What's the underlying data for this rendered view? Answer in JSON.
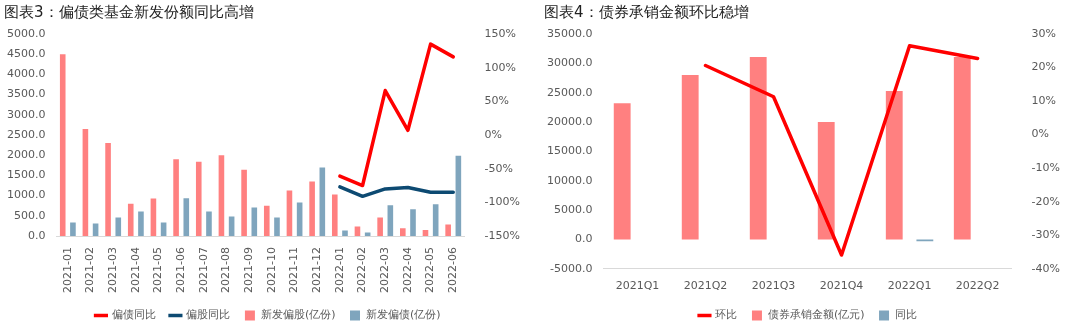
{
  "chart_data": [
    {
      "type": "bar",
      "title": "图表3：偏债类基金新发份额同比高增",
      "categories": [
        "2021-01",
        "2021-02",
        "2021-03",
        "2021-04",
        "2021-05",
        "2021-06",
        "2021-07",
        "2021-08",
        "2021-09",
        "2021-10",
        "2021-11",
        "2021-12",
        "2022-01",
        "2022-02",
        "2022-03",
        "2022-04",
        "2022-05",
        "2022-06"
      ],
      "series": [
        {
          "name": "新发偏股(亿份)",
          "color": "#ff8080",
          "values": [
            4500,
            2650,
            2300,
            800,
            930,
            1900,
            1840,
            2000,
            1640,
            750,
            1130,
            1350,
            1030,
            234,
            458,
            190,
            147,
            285
          ]
        },
        {
          "name": "新发偏债(亿份)",
          "color": "#7fa5bd",
          "values": [
            337,
            311,
            458,
            605,
            337,
            934,
            605,
            484,
            709,
            458,
            830,
            1696,
            138,
            87,
            761,
            666,
            787,
            1990
          ]
        },
        {
          "name": "偏债同比",
          "type": "line",
          "axis": "y2",
          "color": "#ff0000",
          "values": [
            null,
            null,
            null,
            null,
            null,
            null,
            null,
            null,
            null,
            null,
            null,
            null,
            -61,
            -75,
            66,
            7,
            135,
            116
          ]
        },
        {
          "name": "偏股同比",
          "type": "line",
          "axis": "y2",
          "color": "#0d4a72",
          "values": [
            null,
            null,
            null,
            null,
            null,
            null,
            null,
            null,
            null,
            null,
            null,
            null,
            -77,
            -91,
            -80,
            -78,
            -85,
            -85
          ]
        }
      ],
      "ylim": [
        0,
        5000
      ],
      "yticks": [
        {
          "value": 0,
          "label": "0.0"
        },
        {
          "value": 500,
          "label": "500.0"
        },
        {
          "value": 1000,
          "label": "1000.0"
        },
        {
          "value": 1500,
          "label": "1500.0"
        },
        {
          "value": 2000,
          "label": "2000.0"
        },
        {
          "value": 2500,
          "label": "2500.0"
        },
        {
          "value": 3000,
          "label": "3000.0"
        },
        {
          "value": 3500,
          "label": "3500.0"
        },
        {
          "value": 4000,
          "label": "4000.0"
        },
        {
          "value": 4500,
          "label": "4500.0"
        },
        {
          "value": 5000,
          "label": "5000.0"
        }
      ],
      "y2lim": [
        -150,
        150
      ],
      "y2ticks": [
        {
          "value": -150,
          "label": "-150%"
        },
        {
          "value": -100,
          "label": "-100%"
        },
        {
          "value": -50,
          "label": "-50%"
        },
        {
          "value": 0,
          "label": "0%"
        },
        {
          "value": 50,
          "label": "50%"
        },
        {
          "value": 100,
          "label": "100%"
        },
        {
          "value": 150,
          "label": "150%"
        }
      ],
      "grid": false,
      "legend": "bottom",
      "marker": "none"
    },
    {
      "type": "bar",
      "title": "图表4：债券承销金额环比稳增",
      "categories": [
        "2021Q1",
        "2021Q2",
        "2021Q3",
        "2021Q4",
        "2022Q1",
        "2022Q2"
      ],
      "series": [
        {
          "name": "债券承销金额(亿元)",
          "color": "#ff8080",
          "values": [
            23200,
            28000,
            31100,
            20000,
            25300,
            31100
          ]
        },
        {
          "name": "同比",
          "color": "#7fa5bd",
          "values": [
            null,
            null,
            null,
            null,
            -300,
            null
          ]
        },
        {
          "name": "环比",
          "type": "line",
          "axis": "y2",
          "color": "#ff0000",
          "values": [
            null,
            20.6,
            11.3,
            -35.9,
            26.5,
            22.7
          ]
        }
      ],
      "ylim": [
        -5000,
        35000
      ],
      "yticks": [
        {
          "value": -5000,
          "label": "-5000.0"
        },
        {
          "value": 0,
          "label": "0.0"
        },
        {
          "value": 5000,
          "label": "5000.0"
        },
        {
          "value": 10000,
          "label": "10000.0"
        },
        {
          "value": 15000,
          "label": "15000.0"
        },
        {
          "value": 20000,
          "label": "20000.0"
        },
        {
          "value": 25000,
          "label": "25000.0"
        },
        {
          "value": 30000,
          "label": "30000.0"
        },
        {
          "value": 35000,
          "label": "35000.0"
        }
      ],
      "y2lim": [
        -40,
        30
      ],
      "y2ticks": [
        {
          "value": -40,
          "label": "-40%"
        },
        {
          "value": -30,
          "label": "-30%"
        },
        {
          "value": -20,
          "label": "-20%"
        },
        {
          "value": -10,
          "label": "-10%"
        },
        {
          "value": 0,
          "label": "0%"
        },
        {
          "value": 10,
          "label": "10%"
        },
        {
          "value": 20,
          "label": "20%"
        },
        {
          "value": 30,
          "label": "30%"
        }
      ],
      "grid": false,
      "legend": "bottom",
      "marker": "none"
    }
  ]
}
